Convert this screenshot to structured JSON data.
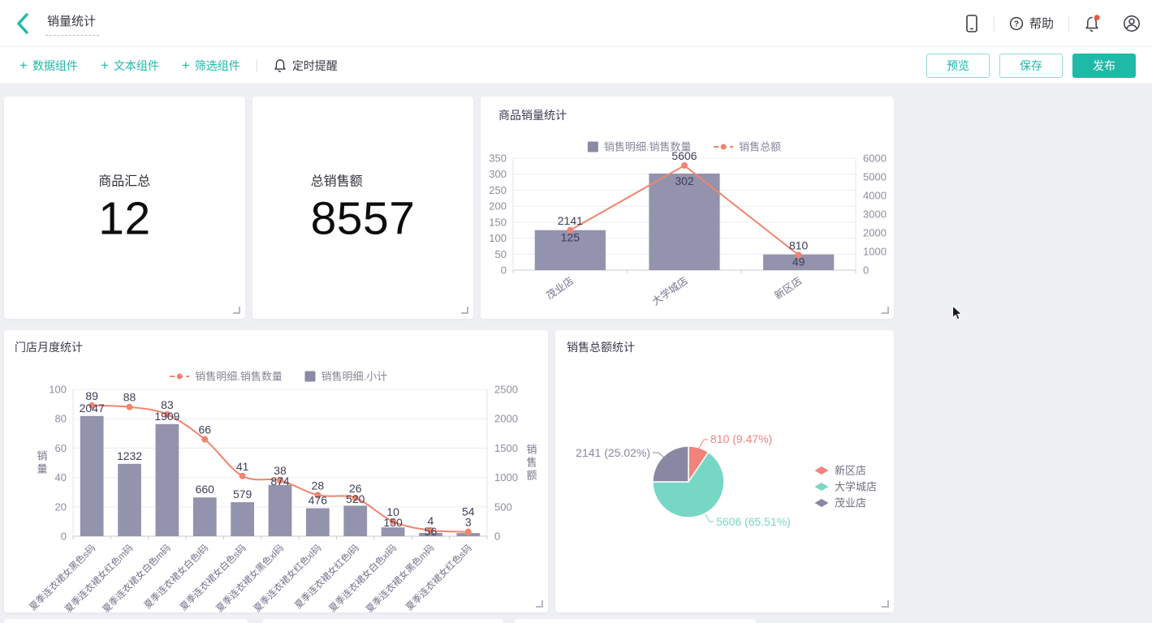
{
  "header": {
    "title": "销量统计",
    "help_label": "帮助"
  },
  "toolbar": {
    "add_buttons": [
      {
        "label": "数据组件"
      },
      {
        "label": "文本组件"
      },
      {
        "label": "筛选组件"
      }
    ],
    "reminder_label": "定时提醒",
    "preview_label": "预览",
    "save_label": "保存",
    "publish_label": "发布"
  },
  "colors": {
    "accent": "#1FB9A7",
    "bar": "#9393AD",
    "bar_legend": "#8A8AA5",
    "line": "#F1846F",
    "value_label": "#3D3D58",
    "axis_label": "#8C8C9E",
    "category_label": "#73738C",
    "legend_text": "#85859A",
    "grid": "#ECECF3",
    "axis_line": "#C9CAD6",
    "pie_salmon": "#F2837B",
    "pie_teal": "#76D7C4",
    "pie_purple": "#8888A2",
    "notification_dot": "#E9573F"
  },
  "metric_cards": [
    {
      "title": "商品汇总",
      "value": "12"
    },
    {
      "title": "总销售额",
      "value": "8557"
    }
  ],
  "chart_data": [
    {
      "type": "bar-line-combo",
      "title": "商品销量统计",
      "categories": [
        "茂业店",
        "大学城店",
        "新区店"
      ],
      "series": [
        {
          "name": "销售明细.销售数量",
          "type": "bar",
          "axis": "left",
          "values": [
            125,
            302,
            49
          ]
        },
        {
          "name": "销售总额",
          "type": "line",
          "axis": "right",
          "values": [
            2141,
            5606,
            810
          ]
        }
      ],
      "left_axis": {
        "min": 0,
        "max": 350,
        "step": 50
      },
      "right_axis": {
        "min": 0,
        "max": 6000,
        "step": 1000
      },
      "legend_position": "top-center",
      "grid": true,
      "smooth": false,
      "bar_labels_inside": true
    },
    {
      "type": "bar-line-combo",
      "title": "门店月度统计",
      "categories": [
        "夏季连衣裙女黑色s码",
        "夏季连衣裙女红色m码",
        "夏季连衣裙女白色m码",
        "夏季连衣裙女白色l码",
        "夏季连衣裙女白色s码",
        "夏季连衣裙女黑色xl码",
        "夏季连衣裙女红色xl码",
        "夏季连衣裙女红色l码",
        "夏季连衣裙女白色xl码",
        "夏季连衣裙女黑色m码",
        "夏季连衣裙女红色s码"
      ],
      "series": [
        {
          "name": "销售明细.销售数量",
          "type": "line",
          "axis": "left",
          "values": [
            89,
            88,
            83,
            66,
            41,
            38,
            28,
            26,
            10,
            4,
            3
          ]
        },
        {
          "name": "销售明细.小计",
          "type": "bar",
          "axis": "right",
          "values": [
            2047,
            1232,
            1909,
            660,
            579,
            874,
            476,
            520,
            150,
            56,
            54
          ]
        }
      ],
      "left_axis": {
        "min": 0,
        "max": 100,
        "step": 20,
        "title": "销量"
      },
      "right_axis": {
        "min": 0,
        "max": 2500,
        "step": 500,
        "title": "销售额"
      },
      "legend_position": "top-center",
      "grid": true,
      "smooth": true,
      "bar_labels_inside": false,
      "label_swap_index": 10
    },
    {
      "type": "pie",
      "title": "销售总额统计",
      "slices": [
        {
          "name": "新区店",
          "value": 810,
          "pct": "9.47%",
          "label": "810 (9.47%)",
          "color": "#F2837B"
        },
        {
          "name": "大学城店",
          "value": 5606,
          "pct": "65.51%",
          "label": "5606 (65.51%)",
          "color": "#76D7C4"
        },
        {
          "name": "茂业店",
          "value": 2141,
          "pct": "25.02%",
          "label": "2141 (25.02%)",
          "color": "#8888A2"
        }
      ],
      "total": 8557,
      "start_angle": "top",
      "direction": "clockwise",
      "legend_position": "right"
    }
  ]
}
